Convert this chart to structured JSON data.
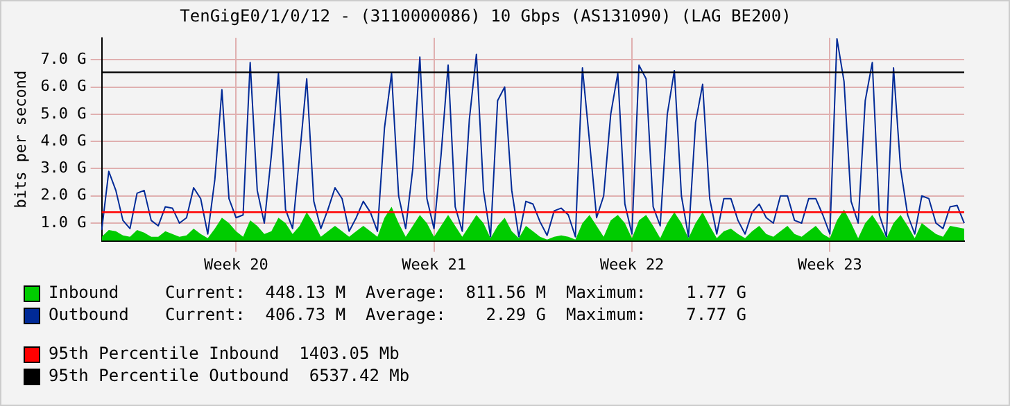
{
  "chart_data": {
    "type": "line",
    "title": "TenGigE0/1/0/12 - (3110000086) 10 Gbps (AS131090) (LAG BE200)",
    "ylabel": "bits per second",
    "categories": [
      null,
      null,
      null,
      null,
      null,
      null,
      null,
      null,
      null,
      null,
      null,
      null,
      null,
      null,
      null,
      null,
      null,
      null,
      null,
      "Week 20",
      null,
      null,
      null,
      null,
      null,
      null,
      null,
      null,
      null,
      null,
      null,
      null,
      null,
      null,
      null,
      null,
      null,
      null,
      null,
      null,
      null,
      null,
      null,
      null,
      null,
      null,
      null,
      "Week 21",
      null,
      null,
      null,
      null,
      null,
      null,
      null,
      null,
      null,
      null,
      null,
      null,
      null,
      null,
      null,
      null,
      null,
      null,
      null,
      null,
      null,
      null,
      null,
      null,
      null,
      null,
      null,
      "Week 22",
      null,
      null,
      null,
      null,
      null,
      null,
      null,
      null,
      null,
      null,
      null,
      null,
      null,
      null,
      null,
      null,
      null,
      null,
      null,
      null,
      null,
      null,
      null,
      null,
      null,
      null,
      null,
      "Week 23",
      null,
      null,
      null,
      null,
      null,
      null,
      null,
      null,
      null,
      null,
      null,
      null,
      null,
      null,
      null,
      null,
      null,
      null,
      null
    ],
    "ylim": [
      0.35,
      7.8
    ],
    "yticks": [
      {
        "value": 1,
        "label": "1.0 G"
      },
      {
        "value": 2,
        "label": "2.0 G"
      },
      {
        "value": 3,
        "label": "3.0 G"
      },
      {
        "value": 4,
        "label": "4.0 G"
      },
      {
        "value": 5,
        "label": "5.0 G"
      },
      {
        "value": 6,
        "label": "6.0 G"
      },
      {
        "value": 7,
        "label": "7.0 G"
      }
    ],
    "grid": true,
    "legend": "bottom",
    "series": [
      {
        "name": "Inbound",
        "type": "area",
        "color": "#00cc00",
        "values": [
          0.5,
          0.75,
          0.7,
          0.55,
          0.5,
          0.75,
          0.65,
          0.5,
          0.5,
          0.7,
          0.6,
          0.5,
          0.55,
          0.8,
          0.6,
          0.45,
          0.8,
          1.2,
          1.0,
          0.7,
          0.5,
          1.1,
          0.9,
          0.6,
          0.7,
          1.2,
          1.0,
          0.6,
          0.9,
          1.4,
          1.0,
          0.5,
          0.7,
          0.9,
          0.7,
          0.5,
          0.7,
          0.9,
          0.7,
          0.5,
          1.2,
          1.6,
          1.0,
          0.5,
          0.9,
          1.3,
          1.0,
          0.5,
          0.9,
          1.3,
          0.9,
          0.5,
          0.9,
          1.3,
          1.0,
          0.45,
          0.9,
          1.2,
          0.7,
          0.45,
          0.9,
          0.7,
          0.5,
          0.4,
          0.5,
          0.55,
          0.5,
          0.4,
          1.0,
          1.3,
          0.9,
          0.5,
          1.1,
          1.3,
          1.0,
          0.45,
          1.1,
          1.3,
          0.9,
          0.45,
          1.0,
          1.4,
          1.0,
          0.45,
          1.0,
          1.4,
          0.9,
          0.45,
          0.7,
          0.8,
          0.6,
          0.45,
          0.7,
          0.9,
          0.6,
          0.5,
          0.7,
          0.9,
          0.6,
          0.5,
          0.7,
          0.9,
          0.6,
          0.45,
          1.1,
          1.5,
          1.0,
          0.45,
          1.0,
          1.3,
          0.9,
          0.45,
          1.0,
          1.3,
          0.9,
          0.45,
          1.0,
          0.8,
          0.6,
          0.5,
          0.9,
          0.85,
          0.8
        ]
      },
      {
        "name": "Outbound",
        "type": "line",
        "color": "#002a97",
        "values": [
          0.75,
          2.9,
          2.2,
          1.1,
          0.8,
          2.1,
          2.2,
          1.1,
          0.9,
          1.6,
          1.55,
          1.0,
          1.2,
          2.3,
          1.9,
          0.6,
          2.6,
          5.9,
          1.9,
          1.2,
          1.3,
          6.9,
          2.2,
          1.0,
          3.5,
          6.5,
          1.5,
          0.8,
          3.5,
          6.3,
          1.8,
          0.8,
          1.5,
          2.3,
          1.9,
          0.7,
          1.2,
          1.8,
          1.4,
          0.7,
          4.5,
          6.5,
          2.0,
          0.8,
          3.0,
          7.1,
          1.9,
          0.8,
          3.5,
          6.8,
          1.6,
          0.7,
          4.8,
          7.2,
          2.2,
          0.5,
          5.5,
          6.0,
          2.2,
          0.5,
          1.8,
          1.7,
          1.05,
          0.55,
          1.45,
          1.55,
          1.3,
          0.5,
          6.7,
          4.0,
          1.2,
          2.0,
          5.0,
          6.5,
          1.7,
          0.6,
          6.8,
          6.3,
          1.6,
          0.9,
          5.0,
          6.6,
          2.0,
          0.5,
          4.7,
          6.1,
          1.9,
          0.6,
          1.9,
          1.9,
          1.1,
          0.6,
          1.4,
          1.7,
          1.2,
          1.0,
          2.0,
          2.0,
          1.1,
          1.0,
          1.9,
          1.9,
          1.3,
          0.6,
          7.77,
          6.2,
          1.8,
          1.0,
          5.5,
          6.9,
          1.3,
          0.5,
          6.7,
          3.0,
          1.3,
          0.6,
          2.0,
          1.9,
          1.0,
          0.8,
          1.6,
          1.65,
          1.0
        ]
      }
    ],
    "ref_lines": [
      {
        "axis": "y",
        "value": 1.40305,
        "label": "95th Percentile Inbound  1403.05 Mb",
        "color": "#ff0000"
      },
      {
        "axis": "y",
        "value": 6.53742,
        "label": "95th Percentile Outbound  6537.42 Mb",
        "color": "#000000"
      }
    ],
    "annotations": [
      "Current:  448.13 M  Average:  811.56 M  Maximum:    1.77 G",
      "Current:  406.73 M  Average:    2.29 G  Maximum:    7.77 G"
    ]
  }
}
